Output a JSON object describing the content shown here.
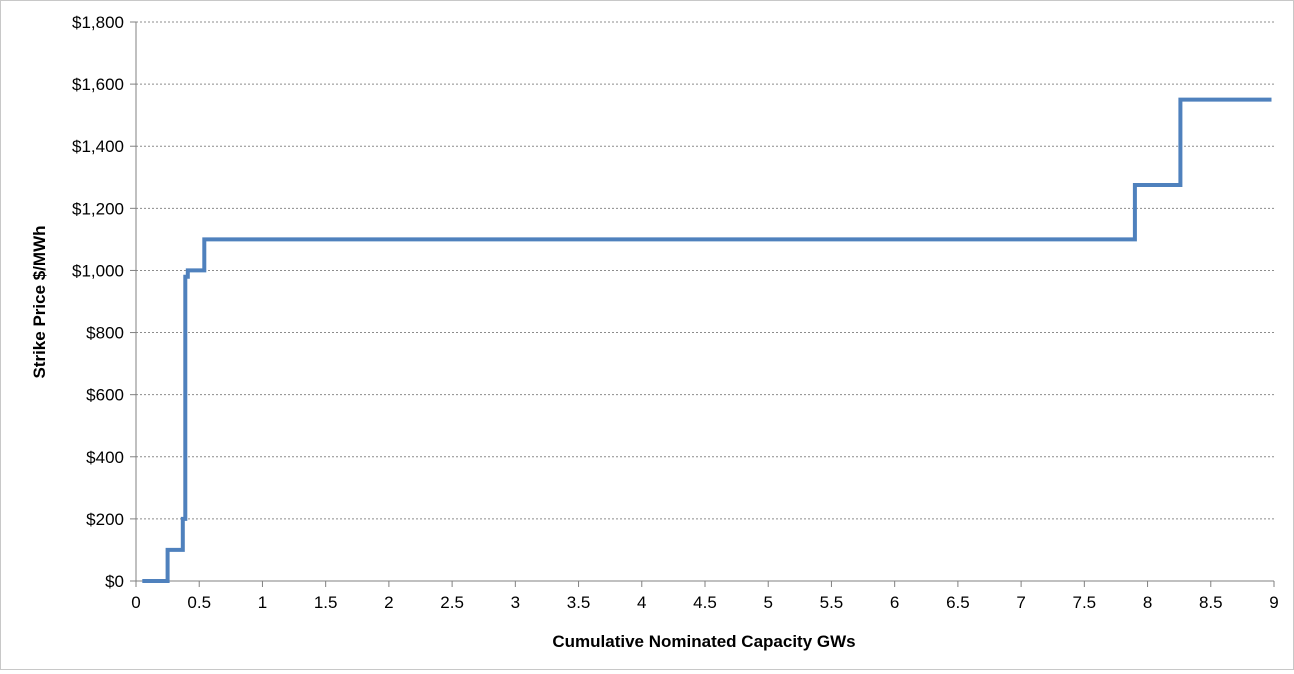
{
  "chart_data": {
    "type": "line",
    "step": true,
    "xlabel": "Cumulative Nominated Capacity GWs",
    "ylabel": "Strike Price $/MWh",
    "xlim": [
      0,
      9
    ],
    "ylim": [
      0,
      1800
    ],
    "x_ticks": [
      0,
      0.5,
      1,
      1.5,
      2,
      2.5,
      3,
      3.5,
      4,
      4.5,
      5,
      5.5,
      6,
      6.5,
      7,
      7.5,
      8,
      8.5,
      9
    ],
    "x_tick_labels": [
      "0",
      "0.5",
      "1",
      "1.5",
      "2",
      "2.5",
      "3",
      "3.5",
      "4",
      "4.5",
      "5",
      "5.5",
      "6",
      "6.5",
      "7",
      "7.5",
      "8",
      "8.5",
      "9"
    ],
    "y_ticks": [
      0,
      200,
      400,
      600,
      800,
      1000,
      1200,
      1400,
      1600,
      1800
    ],
    "y_tick_labels": [
      "$0",
      "$200",
      "$400",
      "$600",
      "$800",
      "$1,000",
      "$1,200",
      "$1,400",
      "$1,600",
      "$1,800"
    ],
    "grid": "horizontal dashed",
    "line_color": "#4f81bd",
    "series": [
      {
        "x": [
          0.05,
          0.25,
          0.25,
          0.37,
          0.37,
          0.39,
          0.39,
          0.41,
          0.41,
          0.54,
          0.54,
          7.9,
          7.9,
          8.26,
          8.26,
          8.98
        ],
        "y": [
          0,
          0,
          100,
          100,
          200,
          200,
          980,
          980,
          1000,
          1000,
          1100,
          1100,
          1275,
          1275,
          1550,
          1550
        ]
      }
    ]
  }
}
